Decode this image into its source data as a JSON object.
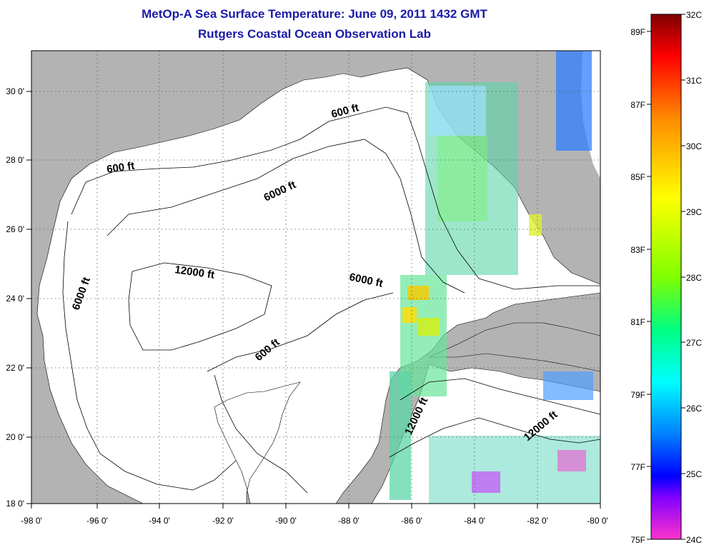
{
  "header": {
    "title": "MetOp-A Sea Surface Temperature:  June 09, 2011 1432 GMT",
    "subtitle": "Rutgers Coastal Ocean Observation Lab"
  },
  "map": {
    "region": "Gulf of Mexico",
    "lon_ticks": [
      "-98 0'",
      "-96 0'",
      "-94 0'",
      "-92 0'",
      "-90 0'",
      "-88 0'",
      "-86 0'",
      "-84 0'",
      "-82 0'",
      "-80 0'"
    ],
    "lat_ticks": [
      "18 0'",
      "20 0'",
      "22 0'",
      "24 0'",
      "26 0'",
      "28 0'",
      "30 0'"
    ],
    "contour_labels": [
      "600 ft",
      "6000 ft",
      "12000 ft",
      "6000 ft",
      "600 ft",
      "6000 ft",
      "600 ft",
      "12000 ft",
      "12000 ft"
    ],
    "land_color": "#b3b3b3",
    "water_color": "#ffffff",
    "grid": "dotted"
  },
  "colorbar": {
    "celsius": [
      "32C",
      "31C",
      "30C",
      "29C",
      "28C",
      "27C",
      "26C",
      "25C",
      "24C"
    ],
    "fahrenheit": [
      "89F",
      "87F",
      "85F",
      "83F",
      "81F",
      "79F",
      "77F",
      "75F"
    ],
    "colors_top_to_bottom": [
      "#7f0000",
      "#ff0000",
      "#ff8c00",
      "#ffff00",
      "#80ff00",
      "#00ff80",
      "#00ffff",
      "#0080ff",
      "#0000ff",
      "#8000ff",
      "#ff00ff"
    ]
  }
}
